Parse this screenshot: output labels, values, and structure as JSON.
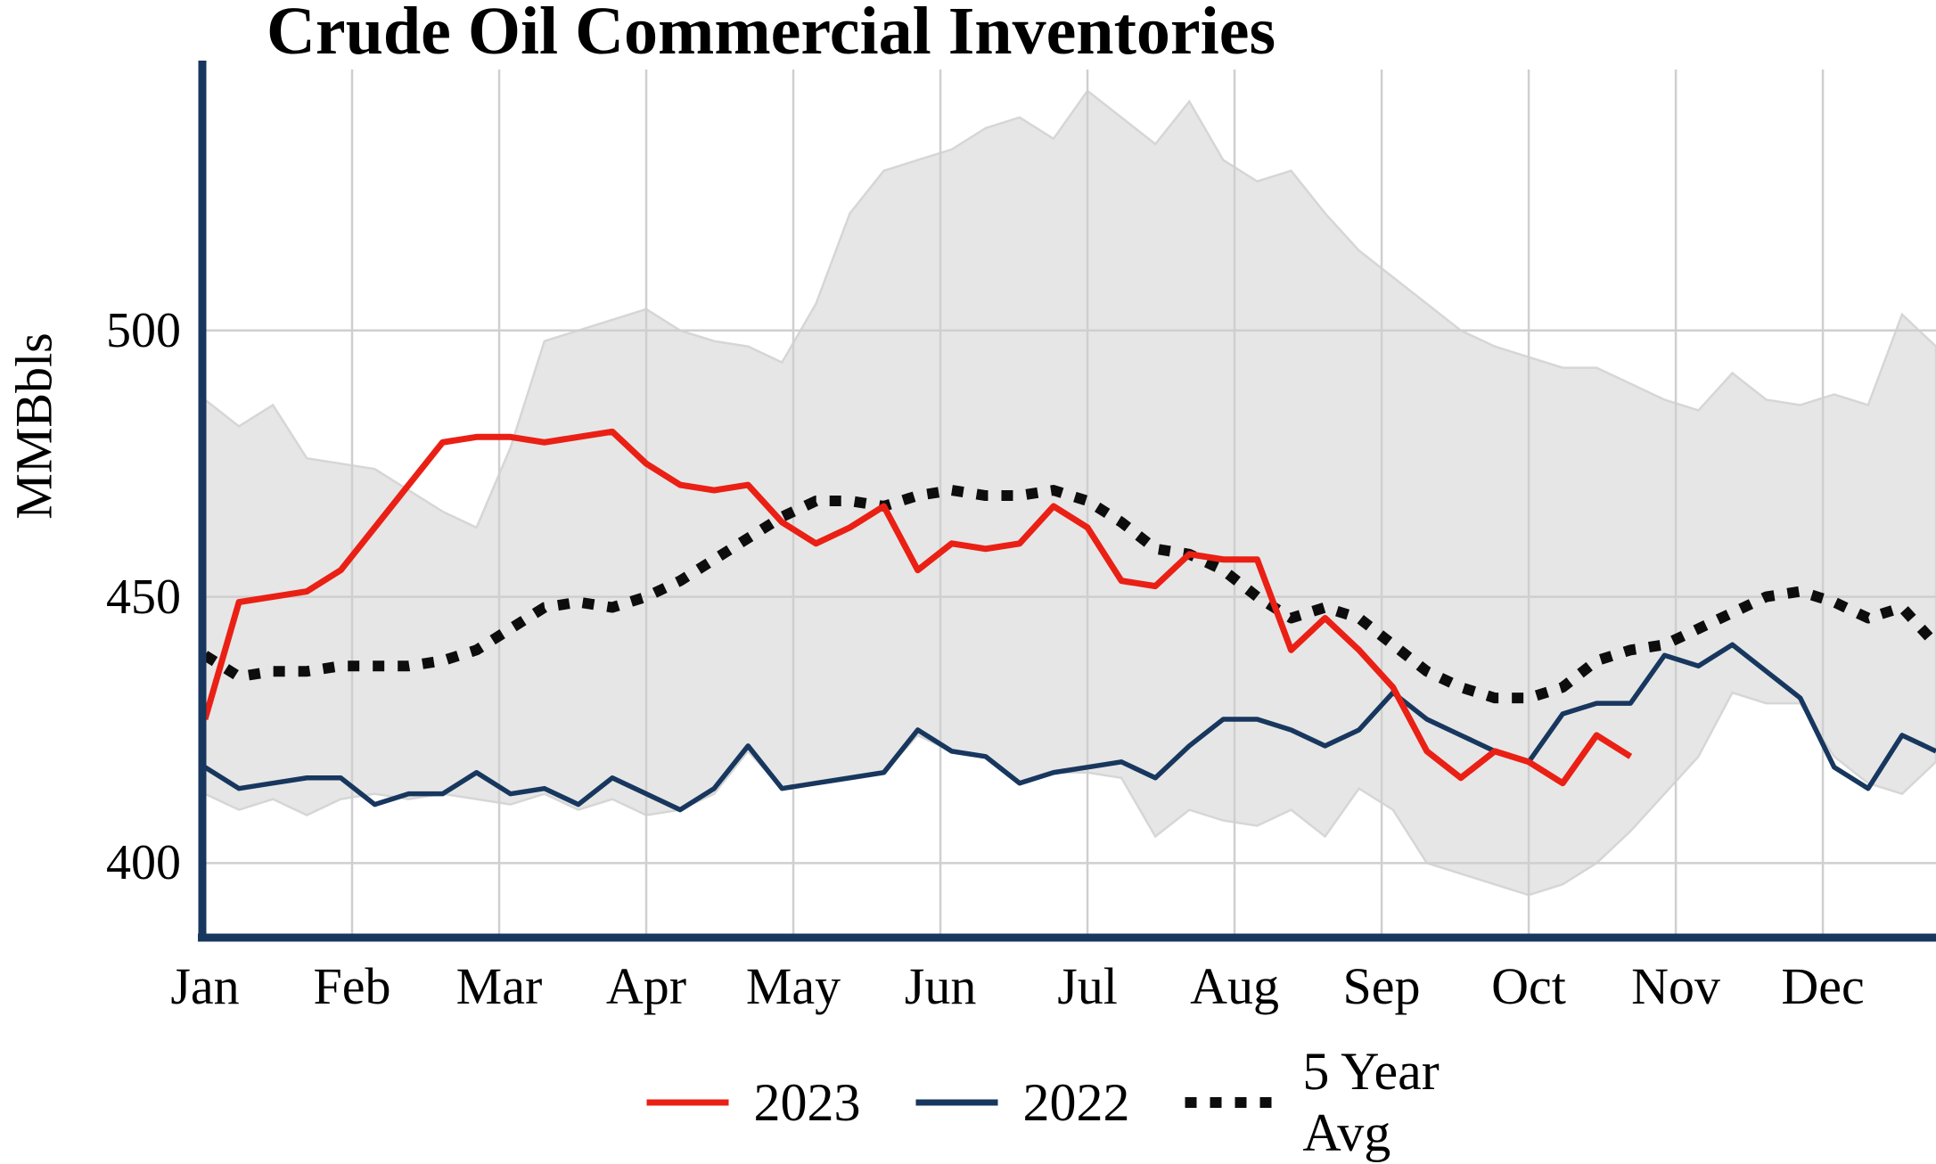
{
  "title": "Crude Oil Commercial Inventories",
  "chart_data": {
    "type": "line",
    "title": "Crude Oil Commercial Inventories",
    "xlabel": "",
    "ylabel": "MMBbls",
    "ylim": [
      386,
      549
    ],
    "yticks": [
      400,
      450,
      500
    ],
    "months": [
      "Jan",
      "Feb",
      "Mar",
      "Apr",
      "May",
      "Jun",
      "Jul",
      "Aug",
      "Sep",
      "Oct",
      "Nov",
      "Dec"
    ],
    "x_unit": "week",
    "weeks_per_year": 52,
    "grid": true,
    "grid_color": "#cfcfcf",
    "axis_color": "#17375e",
    "legend_position": "bottom",
    "series": [
      {
        "name": "2023",
        "color": "#ea2015",
        "style": "solid",
        "values": [
          427,
          449,
          450,
          451,
          455,
          463,
          471,
          479,
          480,
          480,
          479,
          480,
          481,
          475,
          471,
          470,
          471,
          464,
          460,
          463,
          467,
          455,
          460,
          459,
          460,
          467,
          463,
          453,
          452,
          458,
          457,
          457,
          440,
          446,
          440,
          433,
          421,
          416,
          421,
          419,
          415,
          424,
          420
        ]
      },
      {
        "name": "2022",
        "color": "#17375e",
        "style": "solid",
        "values": [
          418,
          414,
          415,
          416,
          416,
          411,
          413,
          413,
          417,
          413,
          414,
          411,
          416,
          413,
          410,
          414,
          422,
          414,
          415,
          416,
          417,
          425,
          421,
          420,
          415,
          417,
          418,
          419,
          416,
          422,
          427,
          427,
          425,
          422,
          425,
          432,
          427,
          424,
          421,
          419,
          428,
          430,
          430,
          439,
          437,
          441,
          436,
          431,
          418,
          414,
          424,
          421
        ]
      },
      {
        "name": "5 Year Avg",
        "color": "#0d0d0d",
        "style": "dotted",
        "values": [
          439,
          435,
          436,
          436,
          437,
          437,
          437,
          438,
          440,
          444,
          448,
          449,
          448,
          450,
          453,
          457,
          461,
          465,
          468,
          468,
          467,
          469,
          470,
          469,
          469,
          470,
          468,
          464,
          459,
          458,
          455,
          450,
          446,
          448,
          446,
          441,
          436,
          433,
          431,
          431,
          433,
          438,
          440,
          441,
          444,
          447,
          450,
          451,
          449,
          446,
          448,
          441
        ]
      }
    ],
    "band": {
      "name": "5-year range",
      "fill": "#e6e6e6",
      "edge": "#d6d6d6",
      "upper": [
        487,
        482,
        486,
        476,
        475,
        474,
        470,
        466,
        463,
        478,
        498,
        500,
        502,
        504,
        500,
        498,
        497,
        494,
        505,
        522,
        530,
        532,
        534,
        538,
        540,
        536,
        545,
        540,
        535,
        543,
        532,
        528,
        530,
        522,
        515,
        510,
        505,
        500,
        497,
        495,
        493,
        493,
        490,
        487,
        485,
        492,
        487,
        486,
        488,
        486,
        503,
        497
      ],
      "lower": [
        413,
        410,
        412,
        409,
        412,
        413,
        412,
        413,
        412,
        411,
        413,
        410,
        412,
        409,
        410,
        413,
        421,
        414,
        415,
        416,
        417,
        424,
        421,
        420,
        415,
        417,
        417,
        416,
        405,
        410,
        408,
        407,
        410,
        405,
        414,
        410,
        400,
        398,
        396,
        394,
        396,
        400,
        406,
        413,
        420,
        432,
        430,
        430,
        420,
        415,
        413,
        419
      ]
    }
  }
}
